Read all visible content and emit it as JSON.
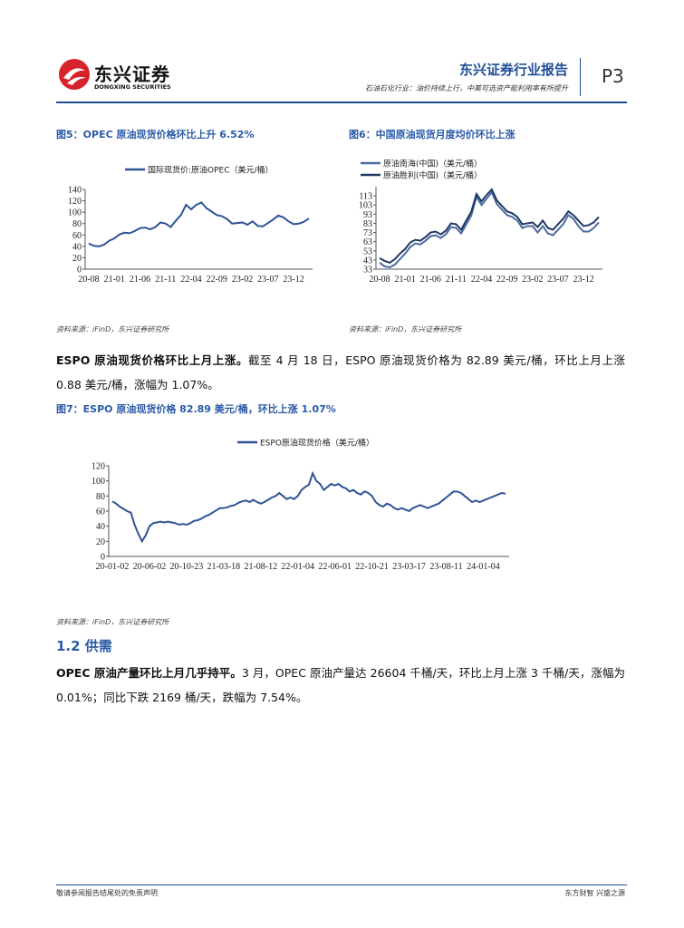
{
  "header": {
    "logo_cn": "东兴证券",
    "logo_en": "DONGXING SECURITIES",
    "report_type": "东兴证券行业报告",
    "subtitle": "石油石化行业：油价持续上行，中美可选资产能利用率有所提升",
    "page": "P3"
  },
  "paragraphs": [
    {
      "lead": "ESPO 原油现货价格环比上月上涨。",
      "text": "截至 4 月 18 日，ESPO 原油现货价格为 82.89 美元/桶，环比上月上涨 0.88 美元/桶，涨幅为 1.07%。"
    },
    {
      "lead": "OPEC 原油产量环比上月几乎持平。",
      "text": "3 月，OPEC 原油产量达 26604 千桶/天，环比上月上涨 3 千桶/天，涨幅为 0.01%；同比下跌 2169 桶/天，跌幅为 7.54%。"
    }
  ],
  "section_heading": "1.2 供需",
  "footer": {
    "disclaimer": "敬请参阅报告结尾处的免责声明",
    "slogan": "东方财智 兴盛之源"
  },
  "chart_data": [
    {
      "type": "line",
      "title": "图5：OPEC 原油现货价格环比上升 6.52%",
      "source": "资料来源：iFinD，东兴证券研究所",
      "grid": false,
      "categories": [
        "20-08",
        null,
        null,
        null,
        null,
        "21-01",
        null,
        null,
        null,
        null,
        "21-06",
        null,
        null,
        null,
        null,
        "21-11",
        null,
        null,
        null,
        null,
        "22-04",
        null,
        null,
        null,
        null,
        "22-09",
        null,
        null,
        null,
        null,
        "23-02",
        null,
        null,
        null,
        null,
        "23-07",
        null,
        null,
        null,
        null,
        "23-12",
        null,
        null,
        null
      ],
      "series": [
        {
          "name": "国际现货价:原油OPEC（美元/桶）",
          "color": "#2f5496",
          "values": [
            45,
            41,
            40,
            43,
            50,
            54,
            61,
            64,
            63,
            67,
            72,
            73,
            70,
            74,
            82,
            80,
            74,
            85,
            95,
            113,
            105,
            113,
            117,
            107,
            101,
            95,
            93,
            88,
            80,
            81,
            82,
            78,
            84,
            76,
            75,
            81,
            87,
            94,
            91,
            84,
            79,
            80,
            83,
            89
          ]
        }
      ],
      "ylim": [
        0,
        140
      ],
      "yticks": [
        0,
        20,
        40,
        60,
        80,
        100,
        120,
        140
      ]
    },
    {
      "type": "line",
      "title": "图6：中国原油现货月度均价环比上涨",
      "source": "资料来源：iFinD，东兴证券研究所",
      "grid": false,
      "categories": [
        "20-08",
        null,
        null,
        null,
        null,
        "21-01",
        null,
        null,
        null,
        null,
        "21-06",
        null,
        null,
        null,
        null,
        "21-11",
        null,
        null,
        null,
        null,
        "22-04",
        null,
        null,
        null,
        null,
        "22-09",
        null,
        null,
        null,
        null,
        "23-02",
        null,
        null,
        null,
        null,
        "23-07",
        null,
        null,
        null,
        null,
        "23-12",
        null,
        null,
        null
      ],
      "series": [
        {
          "name": "原油南海(中国)（美元/桶）",
          "color": "#4a6aa0",
          "values": [
            40,
            36,
            35,
            38,
            44,
            50,
            57,
            61,
            60,
            64,
            69,
            70,
            67,
            71,
            79,
            78,
            72,
            82,
            92,
            112,
            103,
            110,
            117,
            104,
            98,
            92,
            90,
            86,
            78,
            80,
            80,
            73,
            80,
            72,
            70,
            76,
            82,
            92,
            88,
            80,
            74,
            74,
            78,
            84
          ]
        },
        {
          "name": "原油胜利(中国)（美元/桶）",
          "color": "#1f3864",
          "values": [
            45,
            42,
            40,
            44,
            50,
            55,
            62,
            65,
            64,
            68,
            73,
            74,
            71,
            75,
            83,
            82,
            76,
            86,
            96,
            115,
            107,
            114,
            120,
            108,
            102,
            96,
            94,
            90,
            82,
            83,
            84,
            79,
            86,
            78,
            76,
            82,
            88,
            96,
            92,
            86,
            80,
            81,
            84,
            90
          ]
        }
      ],
      "ylim": [
        33,
        123
      ],
      "yticks": [
        33,
        43,
        53,
        63,
        73,
        83,
        93,
        103,
        113
      ]
    },
    {
      "type": "line",
      "title": "图7：ESPO 原油现货价格 82.89 美元/桶，环比上涨 1.07%",
      "source": "资料来源：iFinD，东兴证券研究所",
      "grid": false,
      "categories": [
        "20-01-02",
        null,
        null,
        null,
        null,
        null,
        null,
        null,
        null,
        null,
        "20-06-02",
        null,
        null,
        null,
        null,
        null,
        null,
        null,
        null,
        null,
        "20-10-23",
        null,
        null,
        null,
        null,
        null,
        null,
        null,
        null,
        null,
        "21-03-18",
        null,
        null,
        null,
        null,
        null,
        null,
        null,
        null,
        null,
        "21-08-12",
        null,
        null,
        null,
        null,
        null,
        null,
        null,
        null,
        null,
        "22-01-04",
        null,
        null,
        null,
        null,
        null,
        null,
        null,
        null,
        null,
        "22-06-01",
        null,
        null,
        null,
        null,
        null,
        null,
        null,
        null,
        null,
        "22-10-21",
        null,
        null,
        null,
        null,
        null,
        null,
        null,
        null,
        null,
        "23-03-17",
        null,
        null,
        null,
        null,
        null,
        null,
        null,
        null,
        null,
        "23-08-11",
        null,
        null,
        null,
        null,
        null,
        null,
        null,
        null,
        null,
        "24-01-04",
        null,
        null,
        null,
        null,
        null,
        null
      ],
      "series": [
        {
          "name": "ESPO原油现货价格（美元/桶）",
          "color": "#2f5496",
          "values": [
            73,
            70,
            66,
            63,
            60,
            58,
            42,
            30,
            20,
            28,
            40,
            44,
            45,
            46,
            45,
            46,
            45,
            44,
            42,
            43,
            42,
            44,
            47,
            48,
            50,
            53,
            55,
            58,
            61,
            64,
            64,
            65,
            67,
            68,
            71,
            73,
            74,
            72,
            75,
            72,
            70,
            72,
            75,
            78,
            80,
            84,
            80,
            76,
            78,
            76,
            80,
            88,
            92,
            95,
            110,
            100,
            96,
            88,
            92,
            96,
            94,
            96,
            92,
            90,
            86,
            88,
            84,
            82,
            86,
            84,
            80,
            72,
            68,
            66,
            70,
            68,
            64,
            62,
            64,
            62,
            60,
            64,
            66,
            68,
            66,
            64,
            66,
            68,
            70,
            74,
            78,
            82,
            86,
            86,
            84,
            80,
            76,
            72,
            74,
            72,
            74,
            76,
            78,
            80,
            82,
            84,
            83
          ]
        }
      ],
      "ylim": [
        0,
        120
      ],
      "yticks": [
        0,
        20,
        40,
        60,
        80,
        100,
        120
      ]
    }
  ]
}
